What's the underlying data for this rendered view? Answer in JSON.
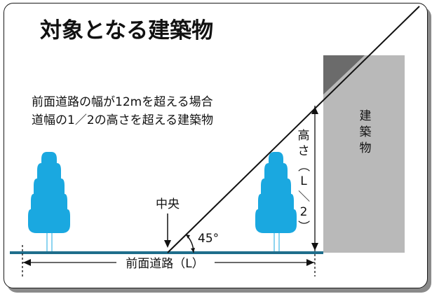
{
  "title": "対象となる建築物",
  "description": {
    "line1": "前面道路の幅が12mを超える場合",
    "line2": "道幅の1／2の高さを超える建築物"
  },
  "labels": {
    "center": "中央",
    "angle": "45°",
    "road_width": "前面道路（L）",
    "height_chars": [
      "高",
      "さ",
      "（",
      "L",
      "／",
      "2",
      "）"
    ],
    "building_chars": [
      "建",
      "築",
      "物"
    ]
  },
  "colors": {
    "tree": "#1aa8e0",
    "ground": "#1f6e8c",
    "building": "#b9b9b9",
    "building_top": "#6b6b6b"
  }
}
